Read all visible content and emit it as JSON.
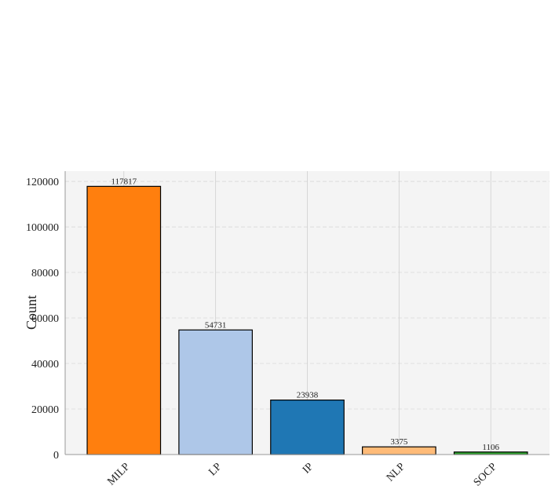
{
  "chart_data": {
    "type": "bar",
    "ylabel": "Count",
    "categories": [
      "MILP",
      "LP",
      "IP",
      "NLP",
      "SOCP"
    ],
    "values": [
      117817,
      54731,
      23938,
      3375,
      1106
    ],
    "colors": [
      "#ff7f0e",
      "#aec7e8",
      "#1f77b4",
      "#ffbb78",
      "#2ca02c"
    ],
    "ylim": [
      0,
      124500
    ],
    "yticks": [
      0,
      20000,
      40000,
      60000,
      80000,
      100000,
      120000
    ],
    "grid": true
  }
}
